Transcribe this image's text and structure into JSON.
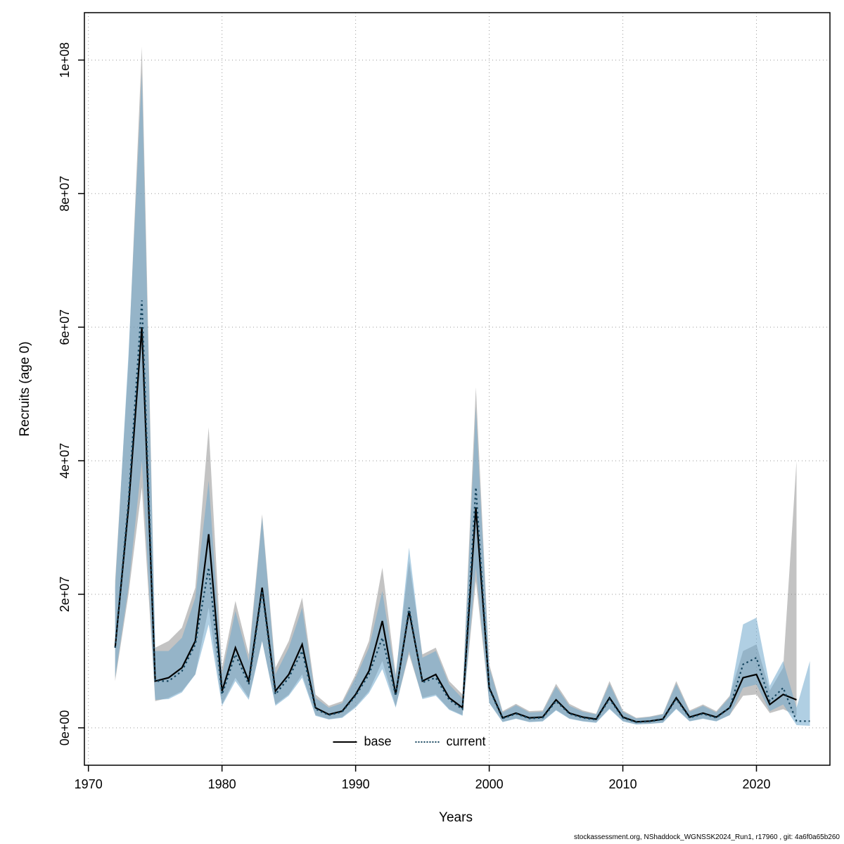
{
  "axes": {
    "ylabel": "Recruits (age 0)",
    "xlabel": "Years"
  },
  "footer": {
    "text": "stockassessment.org, NShaddock_WGNSSK2024_Run1, r17960 , git: 4a6f0a65b260"
  },
  "chart_data": {
    "type": "line",
    "title": "",
    "xlabel": "Years",
    "ylabel": "Recruits (age 0)",
    "grid": true,
    "legend_position": "bottom-center-inside",
    "xlim": [
      1969.7,
      2025.5
    ],
    "ylim": [
      -5600000,
      107100000
    ],
    "x_ticks": [
      1970,
      1980,
      1990,
      2000,
      2010,
      2020
    ],
    "y_ticks": [
      {
        "value": 0,
        "label": "0e+00"
      },
      {
        "value": 20000000.0,
        "label": "2e+07"
      },
      {
        "value": 40000000.0,
        "label": "4e+07"
      },
      {
        "value": 60000000.0,
        "label": "6e+07"
      },
      {
        "value": 80000000.0,
        "label": "8e+07"
      },
      {
        "value": 100000000.0,
        "label": "1e+08"
      }
    ],
    "series": [
      {
        "name": "base",
        "line_style": "solid",
        "line_color": "#000000",
        "band_color": "#7a7a7a",
        "band_opacity": 0.45,
        "years": [
          1972,
          1973,
          1974,
          1975,
          1976,
          1977,
          1978,
          1979,
          1980,
          1981,
          1982,
          1983,
          1984,
          1985,
          1986,
          1987,
          1988,
          1989,
          1990,
          1991,
          1992,
          1993,
          1994,
          1995,
          1996,
          1997,
          1998,
          1999,
          2000,
          2001,
          2002,
          2003,
          2004,
          2005,
          2006,
          2007,
          2008,
          2009,
          2010,
          2011,
          2012,
          2013,
          2014,
          2015,
          2016,
          2017,
          2018,
          2019,
          2020,
          2021,
          2022,
          2023
        ],
        "median": [
          12000000.0,
          33000000.0,
          60000000.0,
          7000000.0,
          7500000.0,
          9000000.0,
          13000000.0,
          29000000.0,
          5500000.0,
          12000000.0,
          7000000.0,
          21000000.0,
          5500000.0,
          8000000.0,
          12500000.0,
          3000000.0,
          2000000.0,
          2500000.0,
          5000000.0,
          8500000.0,
          16000000.0,
          5000000.0,
          17500000.0,
          7000000.0,
          8000000.0,
          4500000.0,
          3000000.0,
          33000000.0,
          6000000.0,
          1500000.0,
          2200000.0,
          1500000.0,
          1600000.0,
          4200000.0,
          2200000.0,
          1600000.0,
          1300000.0,
          4500000.0,
          1600000.0,
          900000.0,
          1000000.0,
          1300000.0,
          4500000.0,
          1600000.0,
          2200000.0,
          1600000.0,
          3000000.0,
          7500000.0,
          8000000.0,
          3500000.0,
          5000000.0,
          4200000.0
        ],
        "lo": [
          7000000.0,
          20000000.0,
          36000000.0,
          4000000.0,
          4500000.0,
          5500000.0,
          8000000.0,
          18000000.0,
          3500000.0,
          7500000.0,
          4500000.0,
          13000000.0,
          3500000.0,
          5000000.0,
          8000000.0,
          1900000.0,
          1300000.0,
          1600000.0,
          3200000.0,
          5500000.0,
          10000000.0,
          3200000.0,
          11000000.0,
          4500000.0,
          5000000.0,
          2800000.0,
          1900000.0,
          22000000.0,
          3800000.0,
          900000.0,
          1400000.0,
          900000.0,
          1000000.0,
          2700000.0,
          1400000.0,
          1000000.0,
          800000.0,
          2900000.0,
          1000000.0,
          550000.0,
          600000.0,
          800000.0,
          2900000.0,
          1000000.0,
          1400000.0,
          1000000.0,
          1900000.0,
          4800000.0,
          5000000.0,
          2200000.0,
          2800000.0,
          1800000.0
        ],
        "hi": [
          22000000.0,
          55000000.0,
          102000000.0,
          12000000.0,
          13000000.0,
          15000000.0,
          21000000.0,
          45000000.0,
          9000000.0,
          19000000.0,
          11000000.0,
          32000000.0,
          9000000.0,
          13000000.0,
          19500000.0,
          5000000.0,
          3300000.0,
          4000000.0,
          8000000.0,
          13000000.0,
          24000000.0,
          8000000.0,
          25000000.0,
          11000000.0,
          12000000.0,
          7000000.0,
          5000000.0,
          51000000.0,
          9500000.0,
          2500000.0,
          3600000.0,
          2500000.0,
          2600000.0,
          6600000.0,
          3600000.0,
          2600000.0,
          2100000.0,
          7000000.0,
          2600000.0,
          1500000.0,
          1700000.0,
          2100000.0,
          7000000.0,
          2600000.0,
          3500000.0,
          2500000.0,
          4800000.0,
          11500000.0,
          12500000.0,
          5600000.0,
          9000000.0,
          40000000.0
        ]
      },
      {
        "name": "current",
        "line_style": "dotted",
        "line_color": "#16455e",
        "band_color": "#6fa8cc",
        "band_opacity": 0.55,
        "years": [
          1972,
          1973,
          1974,
          1975,
          1976,
          1977,
          1978,
          1979,
          1980,
          1981,
          1982,
          1983,
          1984,
          1985,
          1986,
          1987,
          1988,
          1989,
          1990,
          1991,
          1992,
          1993,
          1994,
          1995,
          1996,
          1997,
          1998,
          1999,
          2000,
          2001,
          2002,
          2003,
          2004,
          2005,
          2006,
          2007,
          2008,
          2009,
          2010,
          2011,
          2012,
          2013,
          2014,
          2015,
          2016,
          2017,
          2018,
          2019,
          2020,
          2021,
          2022,
          2023,
          2024
        ],
        "median": [
          12000000.0,
          34000000.0,
          64000000.0,
          7000000.0,
          7000000.0,
          8500000.0,
          12500000.0,
          24000000.0,
          5000000.0,
          11000000.0,
          6500000.0,
          20500000.0,
          5000000.0,
          7500000.0,
          11500000.0,
          2800000.0,
          1900000.0,
          2400000.0,
          4800000.0,
          8000000.0,
          13500000.0,
          4800000.0,
          18000000.0,
          6800000.0,
          7500000.0,
          4200000.0,
          2800000.0,
          36000000.0,
          5800000.0,
          1400000.0,
          2100000.0,
          1400000.0,
          1500000.0,
          4000000.0,
          2100000.0,
          1500000.0,
          1200000.0,
          4300000.0,
          1500000.0,
          850000.0,
          950000.0,
          1250000.0,
          4300000.0,
          1500000.0,
          2100000.0,
          1500000.0,
          3000000.0,
          9500000.0,
          10500000.0,
          4000000.0,
          6000000.0,
          1000000.0,
          1000000.0
        ],
        "lo": [
          7500000.0,
          21000000.0,
          40000000.0,
          4200000.0,
          4300000.0,
          5300000.0,
          8000000.0,
          15500000.0,
          3300000.0,
          7000000.0,
          4200000.0,
          13000000.0,
          3300000.0,
          4800000.0,
          7500000.0,
          1800000.0,
          1250000.0,
          1500000.0,
          3000000.0,
          5200000.0,
          8800000.0,
          3000000.0,
          11500000.0,
          4300000.0,
          4800000.0,
          2700000.0,
          1800000.0,
          24000000.0,
          3700000.0,
          850000.0,
          1350000.0,
          850000.0,
          950000.0,
          2600000.0,
          1350000.0,
          950000.0,
          750000.0,
          2800000.0,
          950000.0,
          500000.0,
          600000.0,
          750000.0,
          2800000.0,
          950000.0,
          1350000.0,
          950000.0,
          1900000.0,
          6000000.0,
          6500000.0,
          2500000.0,
          3500000.0,
          400000.0,
          300000.0
        ],
        "hi": [
          21000000.0,
          56000000.0,
          98000000.0,
          11500000.0,
          11500000.0,
          13500000.0,
          19500000.0,
          37000000.0,
          8000000.0,
          17500000.0,
          10000000.0,
          31500000.0,
          8000000.0,
          12000000.0,
          18000000.0,
          4500000.0,
          3000000.0,
          3700000.0,
          7500000.0,
          12000000.0,
          20500000.0,
          7500000.0,
          27000000.0,
          10500000.0,
          11500000.0,
          6500000.0,
          4400000.0,
          48000000.0,
          9000000.0,
          2300000.0,
          3400000.0,
          2300000.0,
          2400000.0,
          6200000.0,
          3300000.0,
          2400000.0,
          2000000.0,
          6600000.0,
          2400000.0,
          1400000.0,
          1600000.0,
          2000000.0,
          6600000.0,
          2400000.0,
          3300000.0,
          2300000.0,
          4600000.0,
          15500000.0,
          16500000.0,
          6300000.0,
          10000000.0,
          3000000.0,
          10000000.0
        ]
      }
    ]
  }
}
